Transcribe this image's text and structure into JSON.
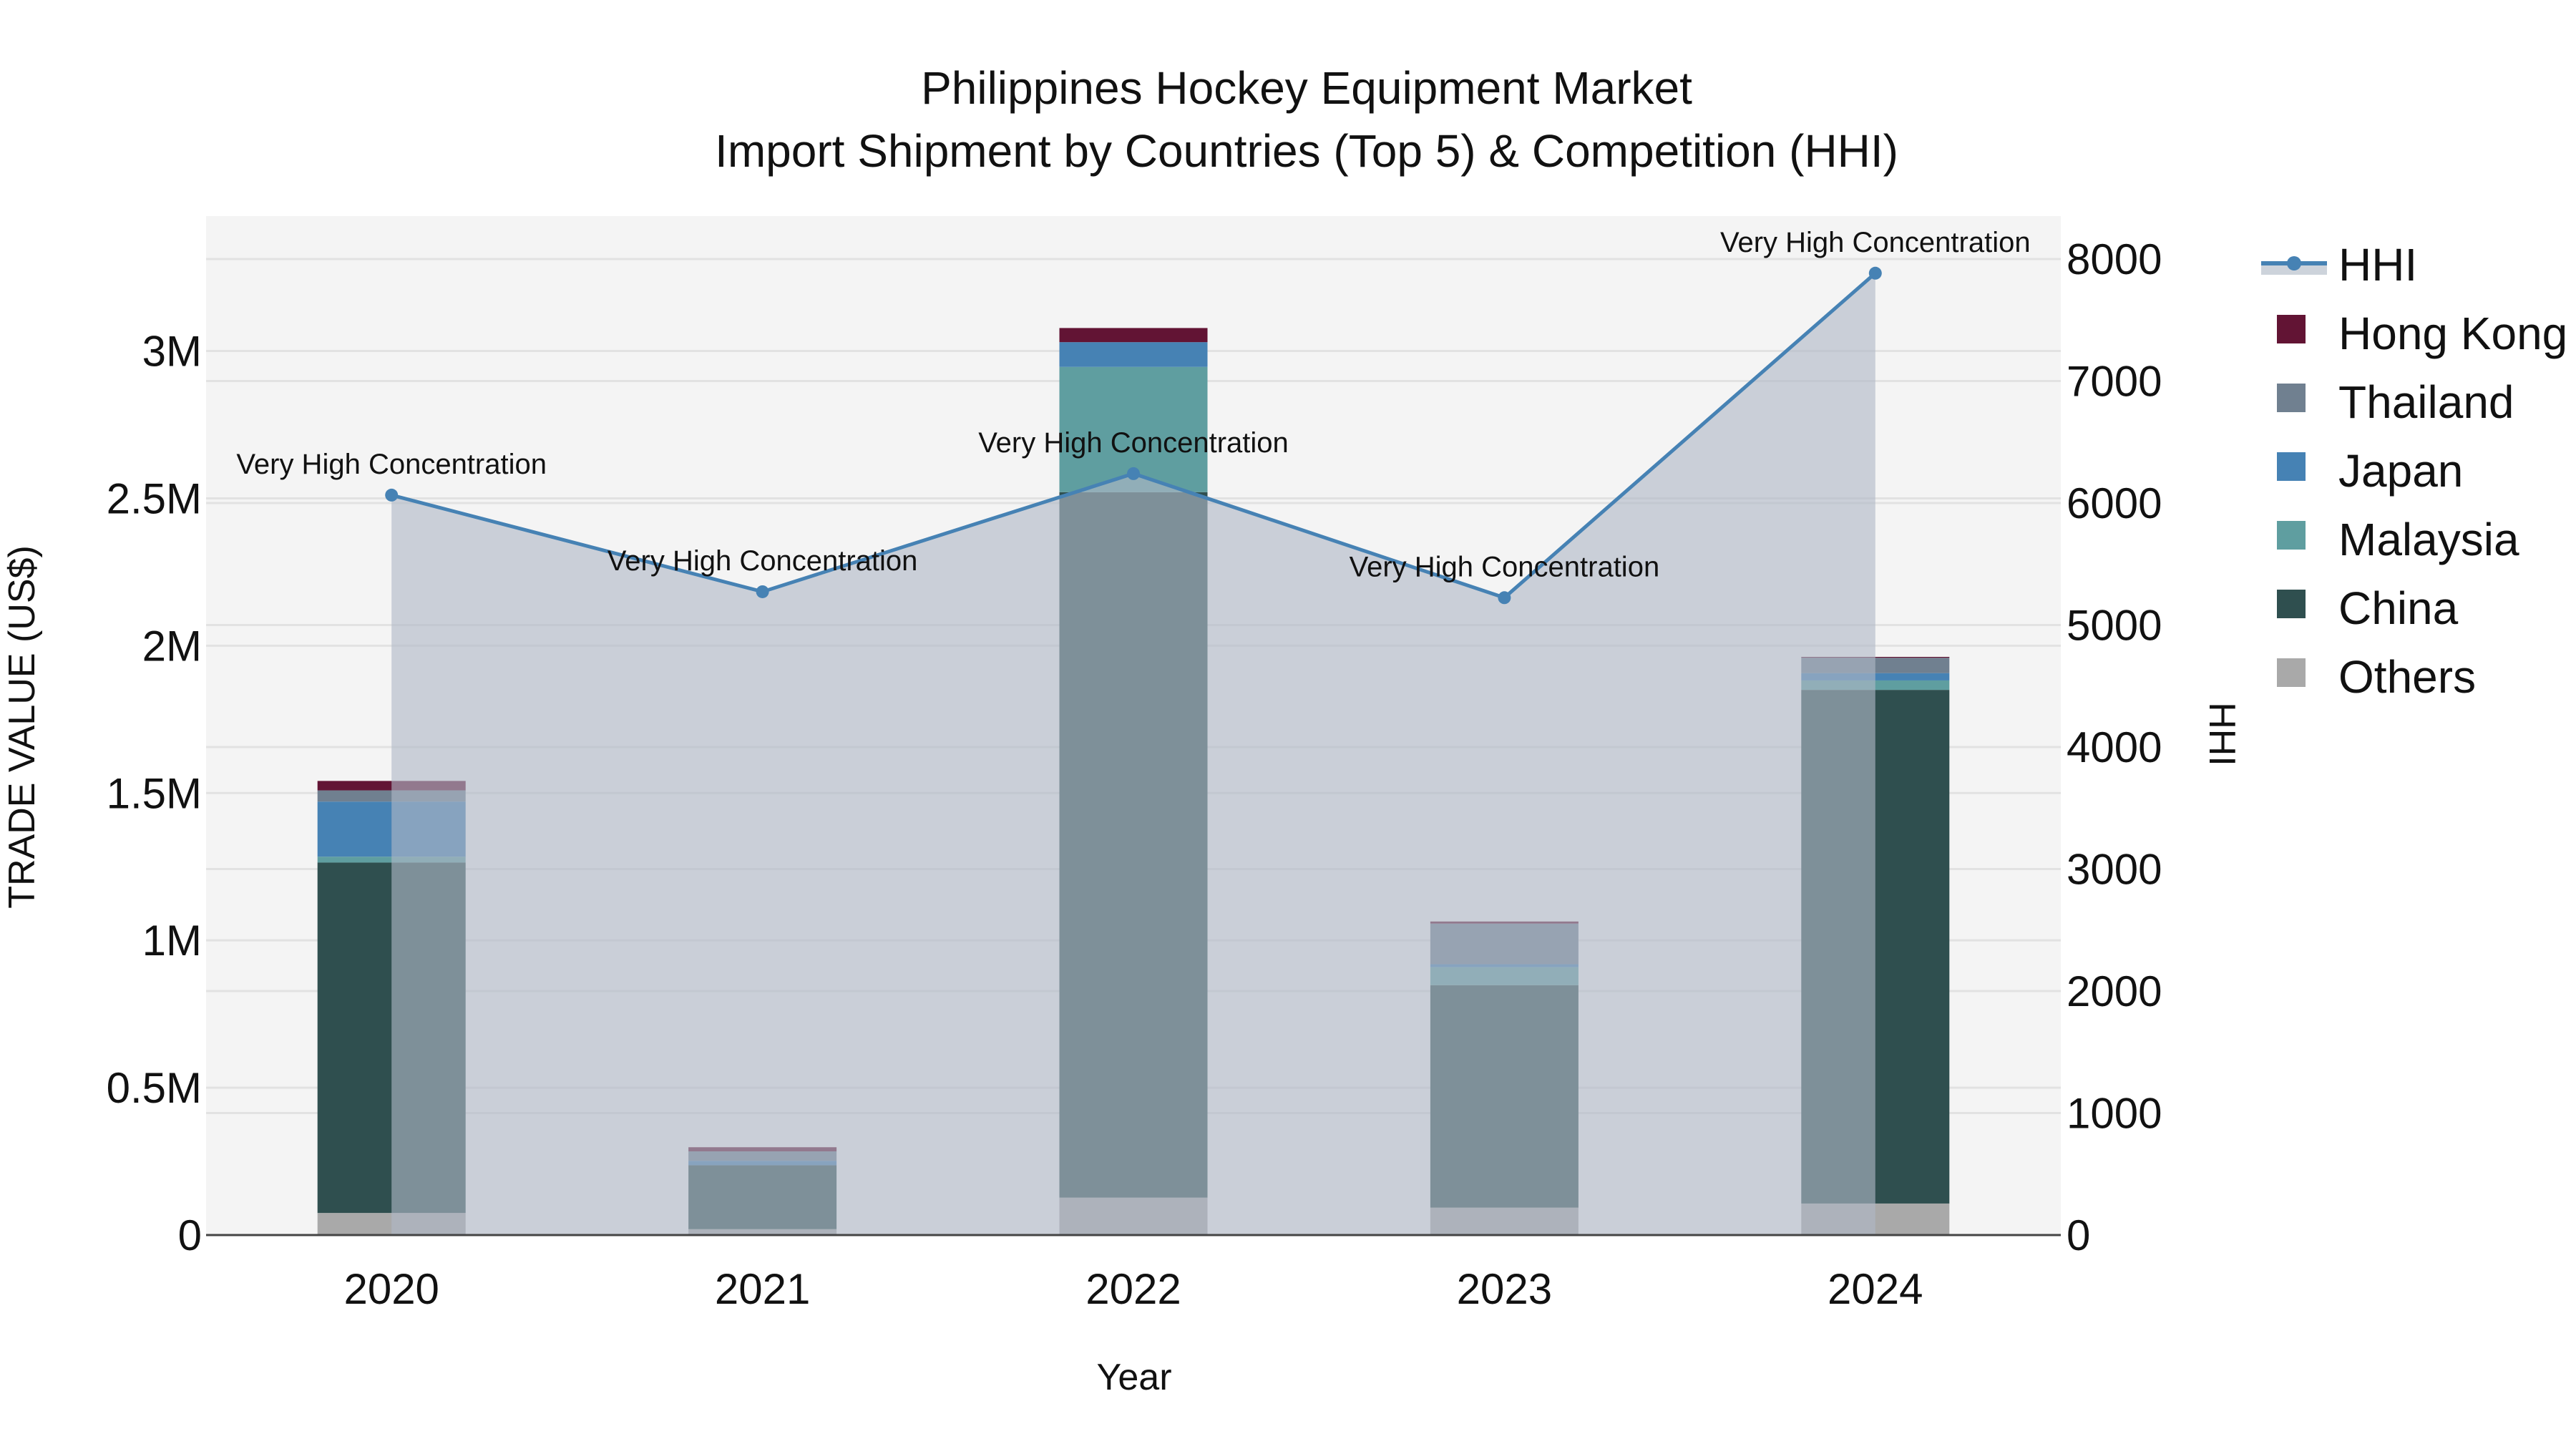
{
  "title": {
    "line1": "Philippines Hockey Equipment Market",
    "line2": "Import Shipment by Countries (Top 5) & Competition (HHI)"
  },
  "axes": {
    "xlabel": "Year",
    "ylabel": "TRADE VALUE (US$)",
    "y2label": "HHI",
    "y_ticks": [
      {
        "value": 0,
        "label": "0"
      },
      {
        "value": 500000,
        "label": "0.5M"
      },
      {
        "value": 1000000,
        "label": "1M"
      },
      {
        "value": 1500000,
        "label": "1.5M"
      },
      {
        "value": 2000000,
        "label": "2M"
      },
      {
        "value": 2500000,
        "label": "2.5M"
      },
      {
        "value": 3000000,
        "label": "3M"
      }
    ],
    "y2_ticks": [
      {
        "value": 0,
        "label": "0"
      },
      {
        "value": 1000,
        "label": "1000"
      },
      {
        "value": 2000,
        "label": "2000"
      },
      {
        "value": 3000,
        "label": "3000"
      },
      {
        "value": 4000,
        "label": "4000"
      },
      {
        "value": 5000,
        "label": "5000"
      },
      {
        "value": 6000,
        "label": "6000"
      },
      {
        "value": 7000,
        "label": "7000"
      },
      {
        "value": 8000,
        "label": "8000"
      }
    ]
  },
  "legend": [
    {
      "name": "HHI",
      "type": "line",
      "color": "#4682B4"
    },
    {
      "name": "Hong Kong",
      "type": "bar",
      "color": "#621434"
    },
    {
      "name": "Thailand",
      "type": "bar",
      "color": "#708090"
    },
    {
      "name": "Japan",
      "type": "bar",
      "color": "#4682B4"
    },
    {
      "name": "Malaysia",
      "type": "bar",
      "color": "#5F9EA0"
    },
    {
      "name": "China",
      "type": "bar",
      "color": "#2F4F4F"
    },
    {
      "name": "Others",
      "type": "bar",
      "color": "#A9A9A9"
    }
  ],
  "colors": {
    "plot_bg": "#F4F4F4",
    "grid": "#E2E2E2",
    "hhi_line": "#4682B4",
    "hhi_fill": "rgba(176,184,198,0.62)",
    "axis_line": "#444444"
  },
  "chart_data": {
    "type": "bar",
    "title": "Philippines Hockey Equipment Market — Import Shipment by Countries (Top 5) & Competition (HHI)",
    "xlabel": "Year",
    "ylabel": "TRADE VALUE (US$)",
    "y2label": "HHI",
    "categories": [
      "2020",
      "2021",
      "2022",
      "2023",
      "2024"
    ],
    "ylim": [
      0,
      3280000
    ],
    "y2lim": [
      0,
      8380
    ],
    "stack_order_bottom_to_top": [
      "Others",
      "China",
      "Malaysia",
      "Japan",
      "Thailand",
      "Hong Kong"
    ],
    "series": [
      {
        "name": "Others",
        "type": "bar",
        "color": "#A9A9A9",
        "values": [
          75000,
          20000,
          127000,
          93000,
          107000
        ]
      },
      {
        "name": "China",
        "type": "bar",
        "color": "#2F4F4F",
        "values": [
          1189000,
          217000,
          2394000,
          755000,
          1743000
        ]
      },
      {
        "name": "Malaysia",
        "type": "bar",
        "color": "#5F9EA0",
        "values": [
          20000,
          0,
          425000,
          61000,
          32000
        ]
      },
      {
        "name": "Japan",
        "type": "bar",
        "color": "#4682B4",
        "values": [
          187000,
          15000,
          84000,
          10000,
          25000
        ]
      },
      {
        "name": "Thailand",
        "type": "bar",
        "color": "#708090",
        "values": [
          38000,
          32000,
          0,
          138000,
          52000
        ]
      },
      {
        "name": "Hong Kong",
        "type": "bar",
        "color": "#621434",
        "values": [
          32000,
          14000,
          48000,
          7000,
          3000
        ]
      },
      {
        "name": "HHI",
        "type": "line",
        "axis": "y2",
        "color": "#4682B4",
        "values": [
          6065,
          5273,
          6241,
          5224,
          7884
        ]
      }
    ],
    "annotations": [
      {
        "x": "2020",
        "text": "Very High Concentration"
      },
      {
        "x": "2021",
        "text": "Very High Concentration"
      },
      {
        "x": "2022",
        "text": "Very High Concentration"
      },
      {
        "x": "2023",
        "text": "Very High Concentration"
      },
      {
        "x": "2024",
        "text": "Very High Concentration"
      }
    ],
    "grid": true,
    "legend_position": "right"
  }
}
